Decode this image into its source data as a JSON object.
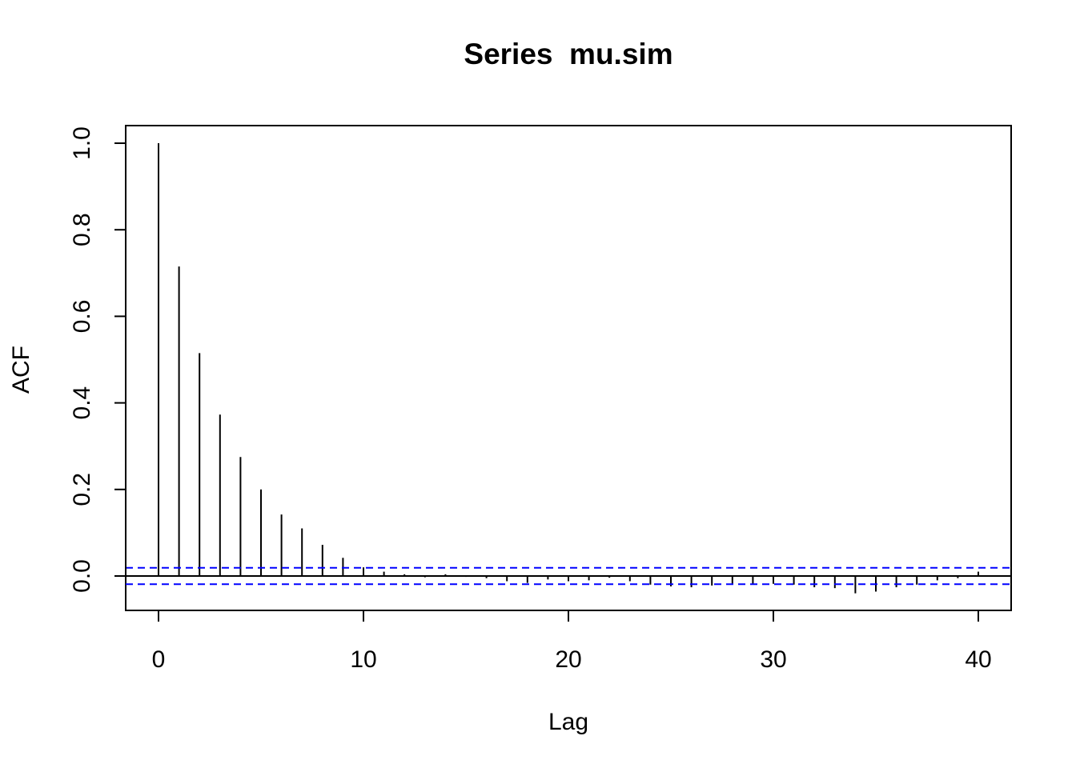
{
  "chart_data": {
    "type": "bar",
    "title": "Series  mu.sim",
    "xlabel": "Lag",
    "ylabel": "ACF",
    "xlim": [
      -1.6,
      41.6
    ],
    "ylim": [
      -0.08,
      1.04
    ],
    "x_ticks": [
      "0",
      "10",
      "20",
      "30",
      "40"
    ],
    "y_ticks": [
      "0.0",
      "0.2",
      "0.4",
      "0.6",
      "0.8",
      "1.0"
    ],
    "grid": false,
    "legend": "none",
    "lags": [
      0,
      1,
      2,
      3,
      4,
      5,
      6,
      7,
      8,
      9,
      10,
      11,
      12,
      13,
      14,
      15,
      16,
      17,
      18,
      19,
      20,
      21,
      22,
      23,
      24,
      25,
      26,
      27,
      28,
      29,
      30,
      31,
      32,
      33,
      34,
      35,
      36,
      37,
      38,
      39,
      40
    ],
    "acf": [
      1.0,
      0.715,
      0.515,
      0.373,
      0.275,
      0.2,
      0.142,
      0.11,
      0.072,
      0.042,
      0.02,
      0.01,
      0.004,
      -0.003,
      0.004,
      -0.002,
      -0.005,
      -0.012,
      -0.016,
      -0.008,
      -0.012,
      -0.01,
      -0.004,
      -0.012,
      -0.02,
      -0.024,
      -0.026,
      -0.022,
      -0.02,
      -0.018,
      -0.018,
      -0.02,
      -0.026,
      -0.028,
      -0.04,
      -0.036,
      -0.026,
      -0.02,
      -0.01,
      -0.005,
      0.01
    ],
    "confidence_bound": 0.019,
    "colors": {
      "bars": "#000000",
      "zero_line": "#000000",
      "confidence_lines": "#0000ff",
      "frame": "#000000"
    }
  }
}
